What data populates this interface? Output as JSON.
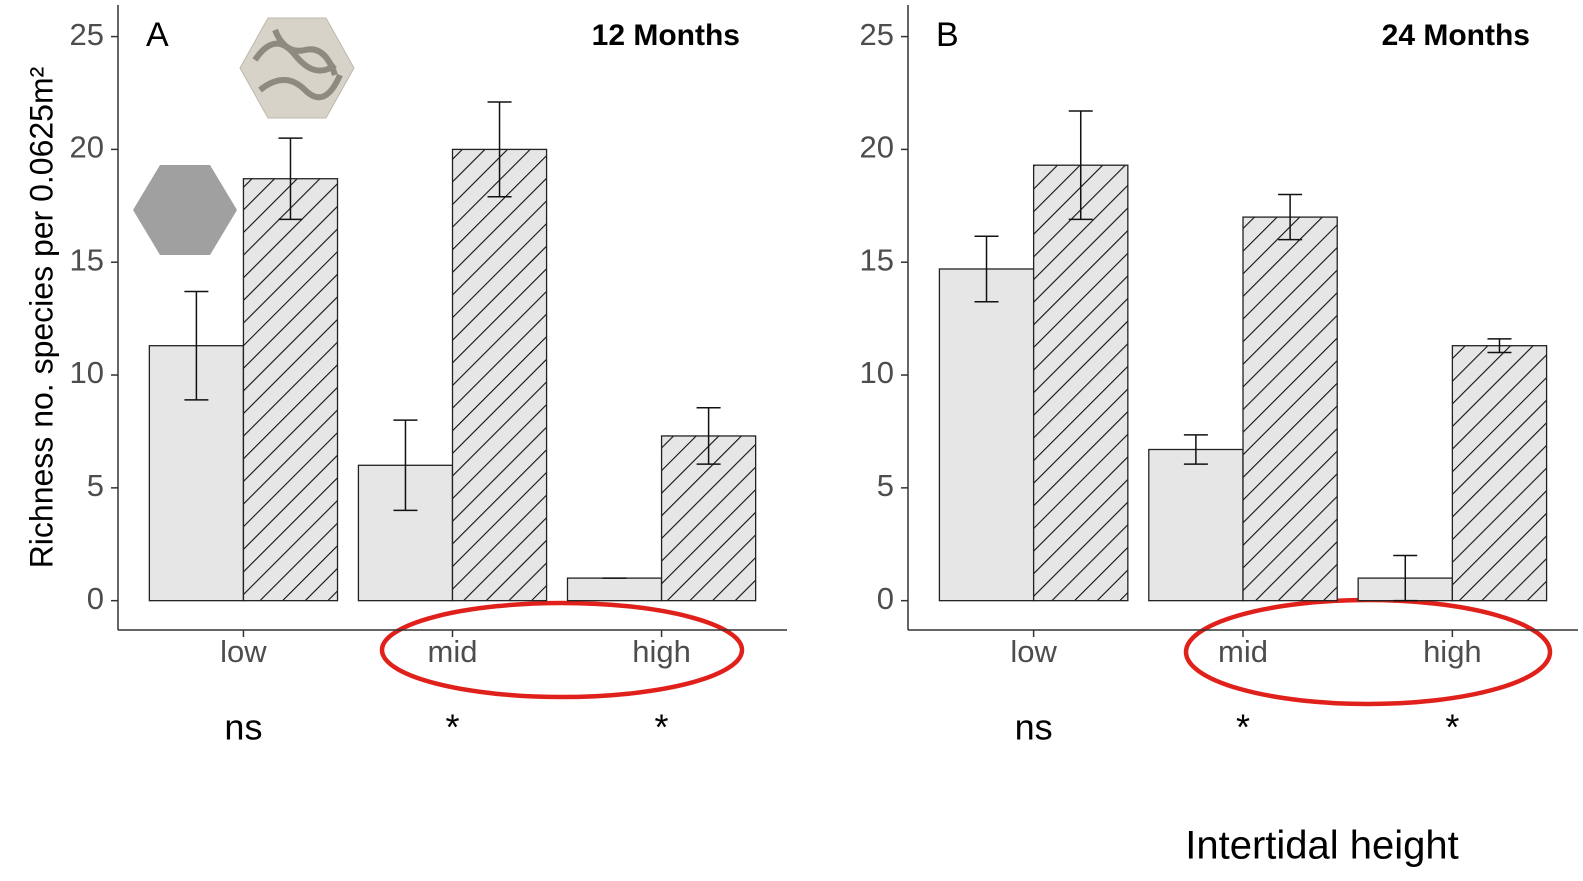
{
  "chart_data": [
    {
      "type": "bar",
      "panel_label": "A",
      "title": "12 Months",
      "ylabel": "Richness no. species per 0.0625m²",
      "categories": [
        "low",
        "mid",
        "high"
      ],
      "series": [
        {
          "color": "#e6e6e6",
          "pattern": "none",
          "values": [
            11.3,
            6.0,
            1.0
          ],
          "errors": [
            2.4,
            2.0,
            0
          ]
        },
        {
          "color": "#e6e6e6",
          "pattern": "hatch",
          "values": [
            18.7,
            20.0,
            7.3
          ],
          "errors": [
            1.8,
            2.1,
            1.25
          ]
        }
      ],
      "annotations": [
        "ns",
        "*",
        "*"
      ],
      "ylim": [
        -1.3,
        26.4
      ],
      "yticks": [
        0,
        5,
        10,
        15,
        20,
        25
      ],
      "grid": false
    },
    {
      "type": "bar",
      "panel_label": "B",
      "title": "24 Months",
      "xlabel": "Intertidal height",
      "categories": [
        "low",
        "mid",
        "high"
      ],
      "series": [
        {
          "color": "#e6e6e6",
          "pattern": "none",
          "values": [
            14.7,
            6.7,
            1.0
          ],
          "errors": [
            1.45,
            0.65,
            1.0
          ]
        },
        {
          "color": "#e6e6e6",
          "pattern": "hatch",
          "values": [
            19.3,
            17.0,
            11.3
          ],
          "errors": [
            2.4,
            1.0,
            0.3
          ]
        }
      ],
      "annotations": [
        "ns",
        "*",
        "*"
      ],
      "ylim": [
        -1.3,
        26.4
      ],
      "yticks": [
        0,
        5,
        10,
        15,
        20,
        25
      ],
      "grid": false
    }
  ]
}
